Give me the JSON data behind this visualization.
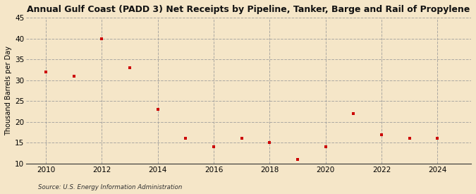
{
  "title": "Annual Gulf Coast (PADD 3) Net Receipts by Pipeline, Tanker, Barge and Rail of Propylene",
  "ylabel": "Thousand Barrels per Day",
  "source": "Source: U.S. Energy Information Administration",
  "background_color": "#f5e6c8",
  "years": [
    2010,
    2011,
    2012,
    2013,
    2014,
    2015,
    2016,
    2017,
    2018,
    2019,
    2020,
    2021,
    2022,
    2023,
    2024
  ],
  "values": [
    32,
    31,
    40,
    33,
    23,
    16,
    14,
    16,
    15,
    11,
    14,
    22,
    17,
    16,
    16
  ],
  "marker_color": "#cc0000",
  "marker": "s",
  "marker_size": 3.5,
  "ylim": [
    10,
    45
  ],
  "yticks": [
    10,
    15,
    20,
    25,
    30,
    35,
    40,
    45
  ],
  "xticks": [
    2010,
    2012,
    2014,
    2016,
    2018,
    2020,
    2022,
    2024
  ],
  "xlim": [
    2009.3,
    2025.2
  ],
  "grid_color": "#999999",
  "grid_style": "--",
  "grid_alpha": 0.8
}
